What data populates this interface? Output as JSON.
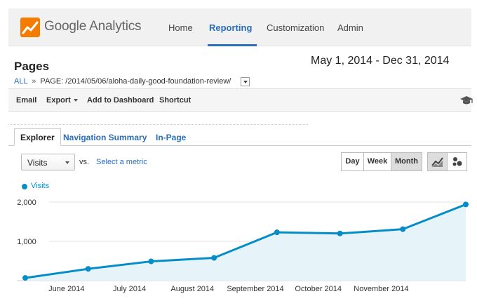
{
  "app": {
    "brand": "Google Analytics",
    "nav": [
      "Home",
      "Reporting",
      "Customization",
      "Admin"
    ],
    "active_nav": "Reporting"
  },
  "page": {
    "title": "Pages",
    "date_range": "May 1, 2014 - Dec 31, 2014",
    "breadcrumb_all": "ALL",
    "breadcrumb_sep": "»",
    "breadcrumb_page": "PAGE: /2014/05/06/aloha-daily-good-foundation-review/"
  },
  "toolbar": {
    "email": "Email",
    "export": "Export",
    "add_dashboard": "Add to Dashboard",
    "shortcut": "Shortcut"
  },
  "tabs": {
    "explorer": "Explorer",
    "navigation_summary": "Navigation Summary",
    "in_page": "In-Page"
  },
  "controls": {
    "metric": "Visits",
    "vs": "vs.",
    "select_metric": "Select a metric",
    "granularity": [
      "Day",
      "Week",
      "Month"
    ],
    "selected_granularity": "Month",
    "chart_mode": "line-chart"
  },
  "colors": {
    "accent": "#2a6ebb",
    "series": "#058dc7",
    "area": "#e6f4fa",
    "logo": "#f57c00"
  },
  "chart_data": {
    "type": "area",
    "series": [
      {
        "name": "Visits",
        "values": [
          70,
          300,
          490,
          580,
          1230,
          1200,
          1310,
          1940
        ]
      }
    ],
    "x_labels": [
      "June 2014",
      "July 2014",
      "August 2014",
      "September 2014",
      "October 2014",
      "November 2014"
    ],
    "y_ticks": [
      "1,000",
      "2,000"
    ],
    "ylim": [
      0,
      2000
    ],
    "grid": true,
    "legend": "top-left"
  }
}
